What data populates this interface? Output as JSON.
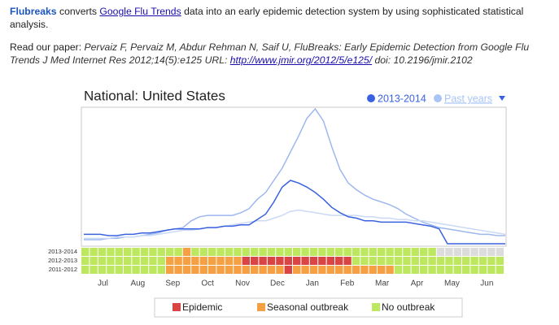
{
  "intro": {
    "brand": "Flubreaks",
    "text1": "converts",
    "link": "Google Flu Trends",
    "text2": "data into an early epidemic detection system by using sophisticated statistical analysis."
  },
  "paper": {
    "lead": "Read our paper:",
    "citation": "Pervaiz F, Pervaiz M, Abdur Rehman N, Saif U, FluBreaks: Early Epidemic Detection from Google Flu Trends J Med Internet Res 2012;14(5):e125 URL:",
    "url": "http://www.jmir.org/2012/5/e125/",
    "doi": "doi: 10.2196/jmir.2102"
  },
  "chart_data": {
    "type": "line",
    "title": "National: United States",
    "xlabels": [
      "Jul",
      "Aug",
      "Sep",
      "Oct",
      "Nov",
      "Dec",
      "Jan",
      "Feb",
      "Mar",
      "Apr",
      "May",
      "Jun"
    ],
    "ylim": [
      0,
      100
    ],
    "series": [
      {
        "name": "2013-2014",
        "color": "#3a62e0",
        "values": [
          7,
          7,
          7,
          6,
          6,
          7,
          7,
          8,
          8,
          9,
          10,
          11,
          11,
          11,
          11,
          12,
          12,
          13,
          13,
          14,
          14,
          18,
          22,
          31,
          42,
          47,
          45,
          42,
          38,
          33,
          27,
          23,
          20,
          19,
          17,
          17,
          16,
          16,
          16,
          16,
          15,
          14,
          13,
          11,
          0,
          0,
          0,
          0,
          0,
          0,
          0,
          0
        ]
      }
    ],
    "past_years": {
      "name": "Past years",
      "color": "#a9c4f5",
      "lines": [
        {
          "color": "#9db8ee",
          "values": [
            3,
            3,
            3,
            4,
            4,
            5,
            5,
            6,
            7,
            8,
            10,
            11,
            12,
            17,
            20,
            21,
            21,
            21,
            21,
            23,
            26,
            33,
            38,
            47,
            56,
            68,
            80,
            93,
            100,
            91,
            72,
            55,
            45,
            40,
            36,
            33,
            31,
            29,
            26,
            22,
            19,
            16,
            14,
            12,
            11,
            10,
            9,
            8,
            7,
            7,
            6,
            6
          ]
        },
        {
          "color": "#cbd9f5",
          "values": [
            4,
            4,
            4,
            4,
            5,
            5,
            5,
            6,
            6,
            7,
            8,
            9,
            10,
            10,
            11,
            12,
            12,
            13,
            14,
            15,
            16,
            17,
            17,
            19,
            21,
            24,
            25,
            24,
            23,
            22,
            21,
            21,
            21,
            21,
            20,
            20,
            19,
            19,
            18,
            18,
            17,
            17,
            16,
            15,
            14,
            13,
            12,
            11,
            10,
            9,
            8,
            7
          ]
        }
      ]
    },
    "heatmap": {
      "rows": [
        {
          "label": "2013-2014",
          "values": [
            0,
            0,
            0,
            0,
            0,
            0,
            0,
            0,
            0,
            0,
            0,
            0,
            1,
            0,
            0,
            0,
            0,
            0,
            0,
            0,
            0,
            0,
            0,
            0,
            0,
            0,
            0,
            0,
            0,
            0,
            0,
            0,
            0,
            0,
            0,
            0,
            0,
            0,
            0,
            0,
            0,
            0,
            null,
            null,
            null,
            null,
            null,
            null,
            null,
            null
          ]
        },
        {
          "label": "2012-2013",
          "values": [
            0,
            0,
            0,
            0,
            0,
            0,
            0,
            0,
            0,
            0,
            1,
            1,
            1,
            1,
            1,
            1,
            1,
            1,
            1,
            2,
            2,
            2,
            2,
            2,
            2,
            2,
            2,
            2,
            2,
            2,
            2,
            2,
            0,
            0,
            0,
            0,
            0,
            0,
            0,
            0,
            0,
            0,
            0,
            0,
            0,
            0,
            0,
            0,
            0,
            0
          ]
        },
        {
          "label": "2011-2012",
          "values": [
            0,
            0,
            0,
            0,
            0,
            0,
            0,
            0,
            0,
            0,
            1,
            1,
            1,
            1,
            1,
            1,
            1,
            1,
            1,
            1,
            1,
            1,
            1,
            1,
            2,
            1,
            1,
            1,
            1,
            1,
            1,
            1,
            1,
            1,
            1,
            1,
            1,
            0,
            0,
            0,
            0,
            0,
            0,
            0,
            0,
            0,
            0,
            0,
            0,
            0
          ]
        }
      ],
      "legend": [
        {
          "name": "Epidemic",
          "color": "#d94545",
          "level": 2
        },
        {
          "name": "Seasonal outbreak",
          "color": "#f5a043",
          "level": 1
        },
        {
          "name": "No outbreak",
          "color": "#bde75e",
          "level": 0
        }
      ],
      "no_data_color": "#dcdcdc"
    }
  }
}
